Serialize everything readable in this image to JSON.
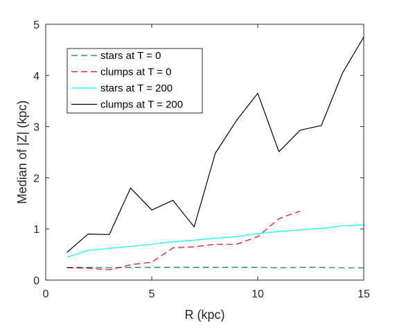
{
  "chart_data": {
    "type": "line",
    "title": "",
    "xlabel": "R (kpc)",
    "ylabel": "Median of |Z| (kpc)",
    "xlim": [
      0,
      15
    ],
    "ylim": [
      0,
      5
    ],
    "xticks": [
      "0",
      "5",
      "10",
      "15"
    ],
    "yticks": [
      "0",
      "1",
      "2",
      "3",
      "4",
      "5"
    ],
    "grid": false,
    "legend_position": "top-left",
    "series": [
      {
        "name": "stars at T = 0",
        "color": "#0072BD",
        "style": "dashed",
        "x": [
          1,
          2,
          3,
          4,
          5,
          6,
          7,
          8,
          9,
          10,
          11,
          12,
          13,
          14,
          15
        ],
        "y": [
          0.25,
          0.25,
          0.24,
          0.25,
          0.25,
          0.25,
          0.25,
          0.25,
          0.25,
          0.25,
          0.24,
          0.25,
          0.25,
          0.24,
          0.24
        ]
      },
      {
        "name": "clumps at T = 0",
        "color": "#FF0000",
        "style": "dashed",
        "x": [
          1,
          2,
          3,
          4,
          5,
          6,
          7,
          8,
          9,
          10,
          11,
          12
        ],
        "y": [
          0.24,
          0.23,
          0.2,
          0.3,
          0.35,
          0.63,
          0.65,
          0.7,
          0.7,
          0.85,
          1.2,
          1.35
        ]
      },
      {
        "name": "stars at T = 200",
        "color": "#00FFFF",
        "style": "solid",
        "x": [
          1,
          2,
          3,
          4,
          5,
          6,
          7,
          8,
          9,
          10,
          11,
          12,
          13,
          14,
          15
        ],
        "y": [
          0.45,
          0.58,
          0.62,
          0.66,
          0.7,
          0.75,
          0.78,
          0.82,
          0.85,
          0.91,
          0.95,
          0.98,
          1.01,
          1.06,
          1.08
        ]
      },
      {
        "name": "clumps at T = 200",
        "color": "#000000",
        "style": "solid",
        "x": [
          1,
          2,
          3,
          4,
          5,
          6,
          7,
          8,
          9,
          10,
          11,
          12,
          13,
          14,
          15
        ],
        "y": [
          0.54,
          0.9,
          0.89,
          1.8,
          1.37,
          1.56,
          1.04,
          2.48,
          3.12,
          3.65,
          2.51,
          2.93,
          3.02,
          4.05,
          4.75
        ]
      }
    ]
  }
}
